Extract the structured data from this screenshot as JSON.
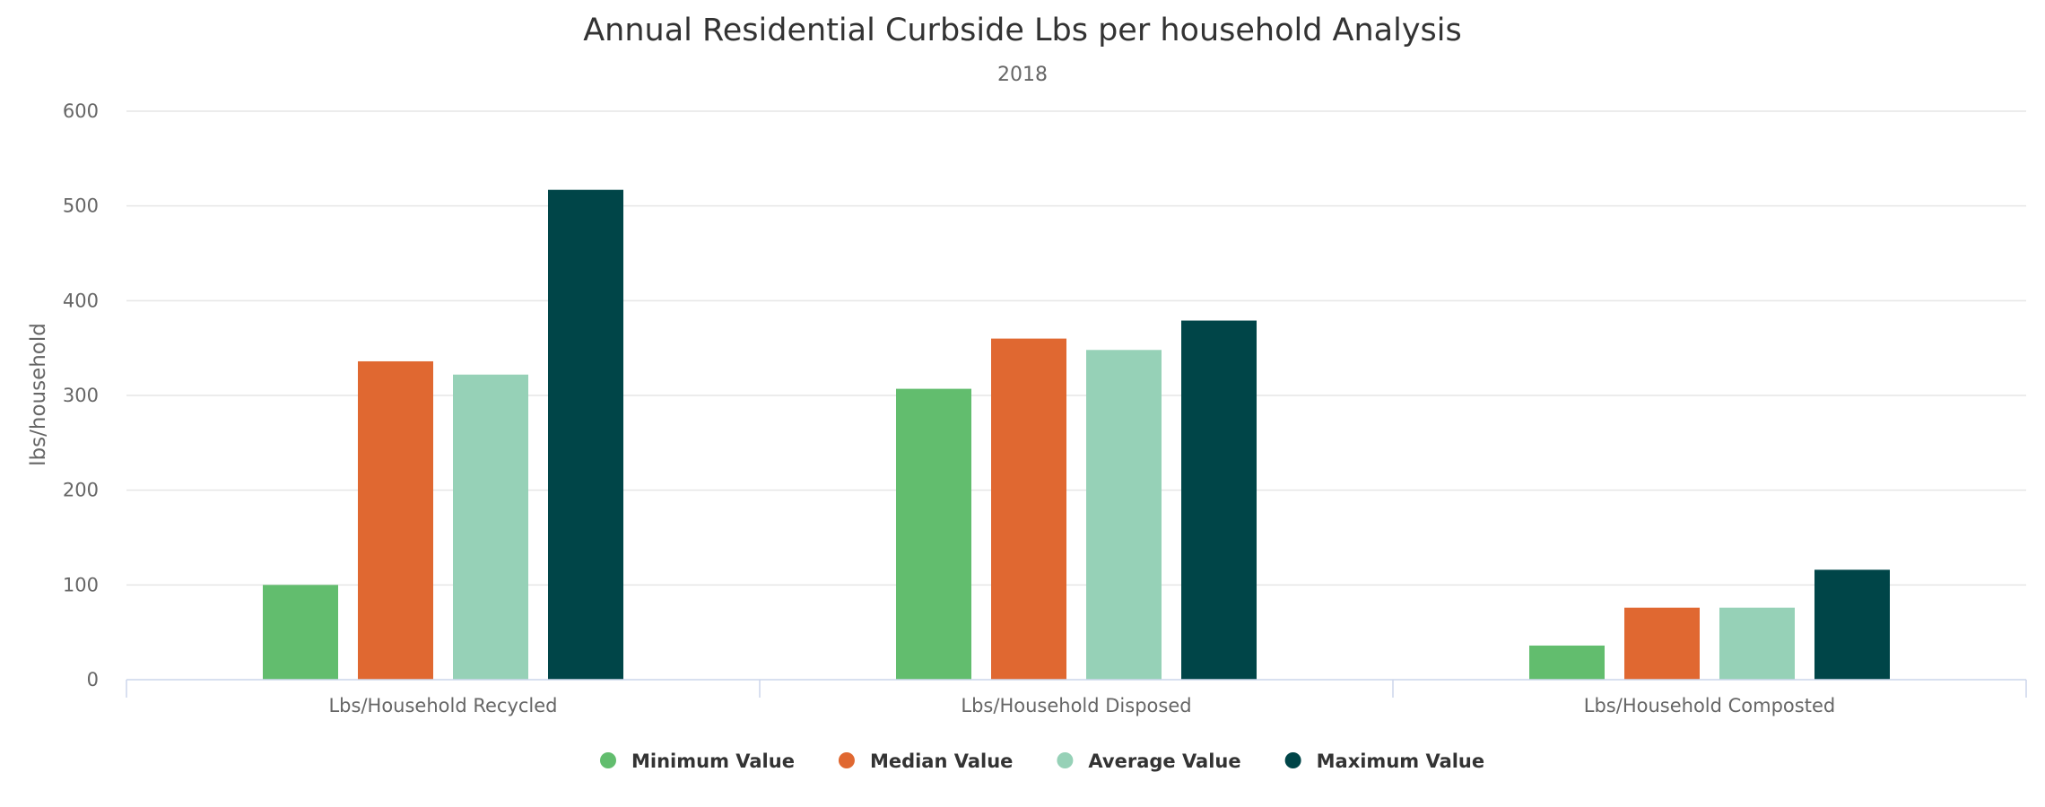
{
  "chart_data": {
    "type": "bar",
    "title": "Annual Residential Curbside Lbs per household Analysis",
    "subtitle": "2018",
    "ylabel": "lbs/household",
    "xlabel": "",
    "ylim": [
      0,
      600
    ],
    "yticks": [
      0,
      100,
      200,
      300,
      400,
      500,
      600
    ],
    "grid": true,
    "legend_position": "bottom",
    "categories": [
      "Lbs/Household Recycled",
      "Lbs/Household Disposed",
      "Lbs/Household Composted"
    ],
    "series": [
      {
        "name": "Minimum Value",
        "color": "#62bd6e",
        "values": [
          100,
          307,
          36
        ]
      },
      {
        "name": "Median Value",
        "color": "#e06831",
        "values": [
          336,
          360,
          76
        ]
      },
      {
        "name": "Average Value",
        "color": "#96d1b7",
        "values": [
          322,
          348,
          76
        ]
      },
      {
        "name": "Maximum Value",
        "color": "#004548",
        "values": [
          517,
          379,
          116
        ]
      }
    ]
  }
}
